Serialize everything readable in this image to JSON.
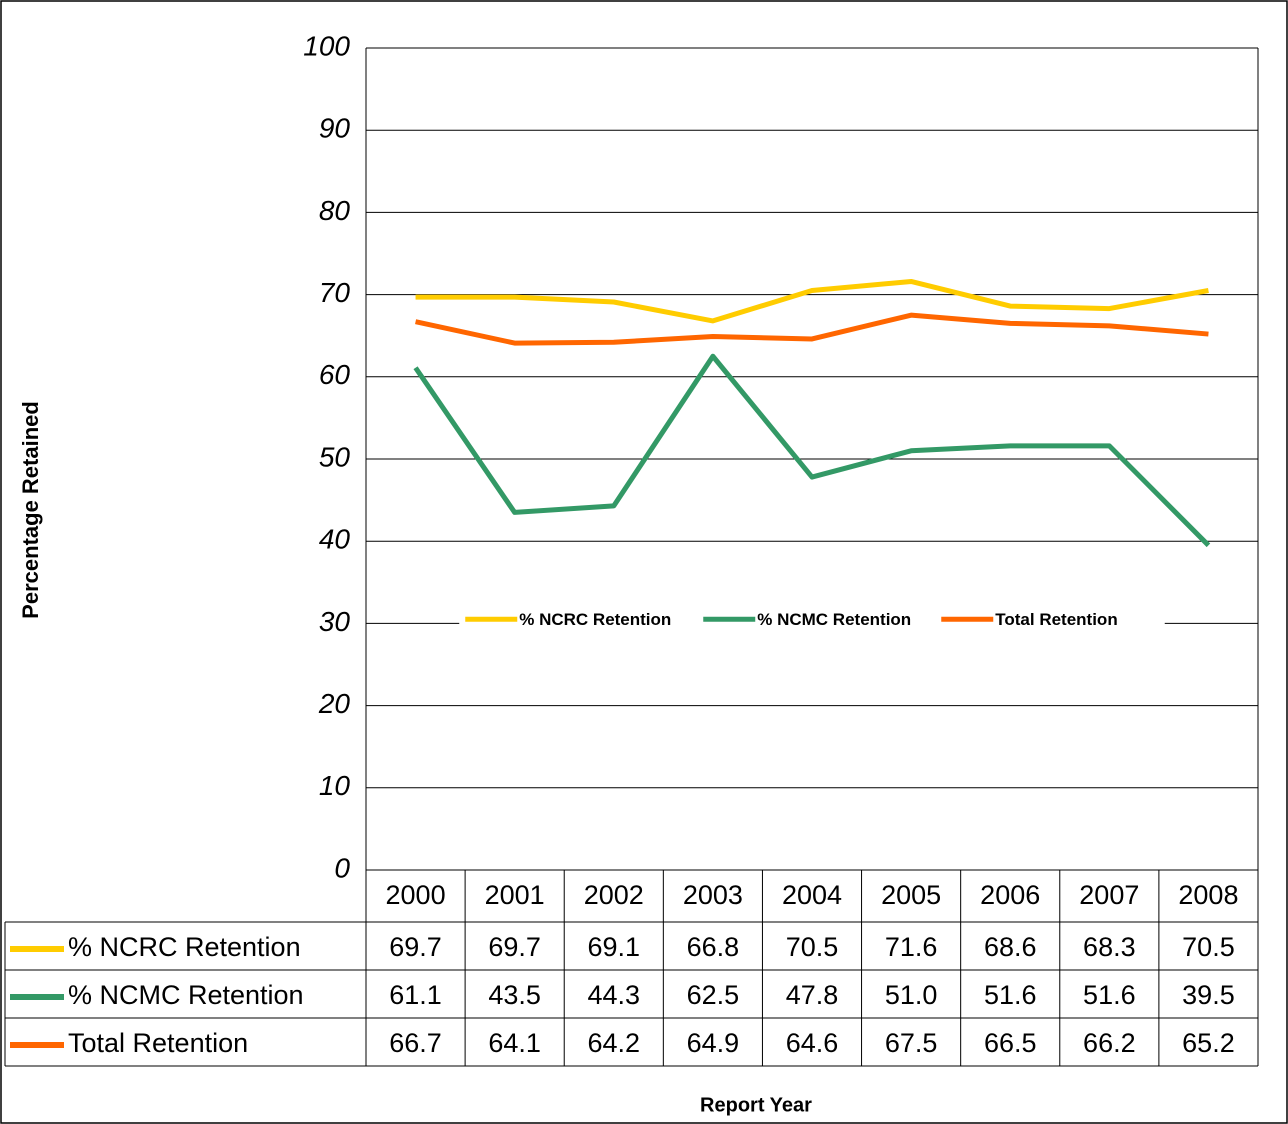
{
  "chart_data": {
    "type": "line",
    "y_label": "Percentage Retained",
    "x_label": "Report Year",
    "categories": [
      "2000",
      "2001",
      "2002",
      "2003",
      "2004",
      "2005",
      "2006",
      "2007",
      "2008"
    ],
    "series": [
      {
        "name": "% NCRC Retention",
        "color": "#ffcc00",
        "values": [
          69.7,
          69.7,
          69.1,
          66.8,
          70.5,
          71.6,
          68.6,
          68.3,
          70.5
        ]
      },
      {
        "name": "% NCMC Retention",
        "color": "#339966",
        "values": [
          61.1,
          43.5,
          44.3,
          62.5,
          47.8,
          51.0,
          51.6,
          51.6,
          39.5
        ],
        "value_labels": [
          "61.1",
          "43.5",
          "44.3",
          "62.5",
          "47.8",
          "51.0",
          "51.6",
          "51.6",
          "39.5"
        ]
      },
      {
        "name": "Total Retention",
        "color": "#ff6600",
        "values": [
          66.7,
          64.1,
          64.2,
          64.9,
          64.6,
          67.5,
          66.5,
          66.2,
          65.2
        ]
      }
    ],
    "ylim": [
      0,
      100
    ],
    "yticks": [
      0,
      10,
      20,
      30,
      40,
      50,
      60,
      70,
      80,
      90,
      100
    ],
    "grid": true,
    "legend": "center",
    "data_table": true
  }
}
